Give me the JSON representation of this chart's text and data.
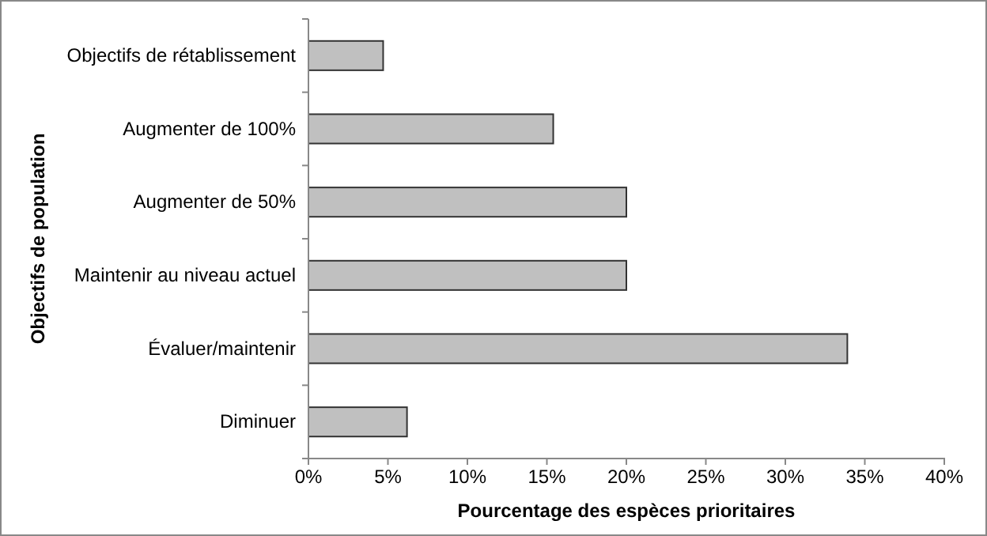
{
  "chart_data": {
    "type": "bar",
    "orientation": "horizontal",
    "xlabel": "Pourcentage des espèces prioritaires",
    "ylabel": "Objectifs de population",
    "categories": [
      "Objectifs de rétablissement",
      "Augmenter de 100%",
      "Augmenter de 50%",
      "Maintenir au niveau actuel",
      "Évaluer/maintenir",
      "Diminuer"
    ],
    "values": [
      4.7,
      15.4,
      20,
      20,
      33.9,
      6.2
    ],
    "color": "#c0c0c0",
    "xlim": [
      0,
      40
    ],
    "xticks": [
      {
        "value": 0,
        "label": "0%"
      },
      {
        "value": 5,
        "label": "5%"
      },
      {
        "value": 10,
        "label": "10%"
      },
      {
        "value": 15,
        "label": "15%"
      },
      {
        "value": 20,
        "label": "20%"
      },
      {
        "value": 25,
        "label": "25%"
      },
      {
        "value": 30,
        "label": "30%"
      },
      {
        "value": 35,
        "label": "35%"
      },
      {
        "value": 40,
        "label": "40%"
      }
    ],
    "grid": false
  }
}
